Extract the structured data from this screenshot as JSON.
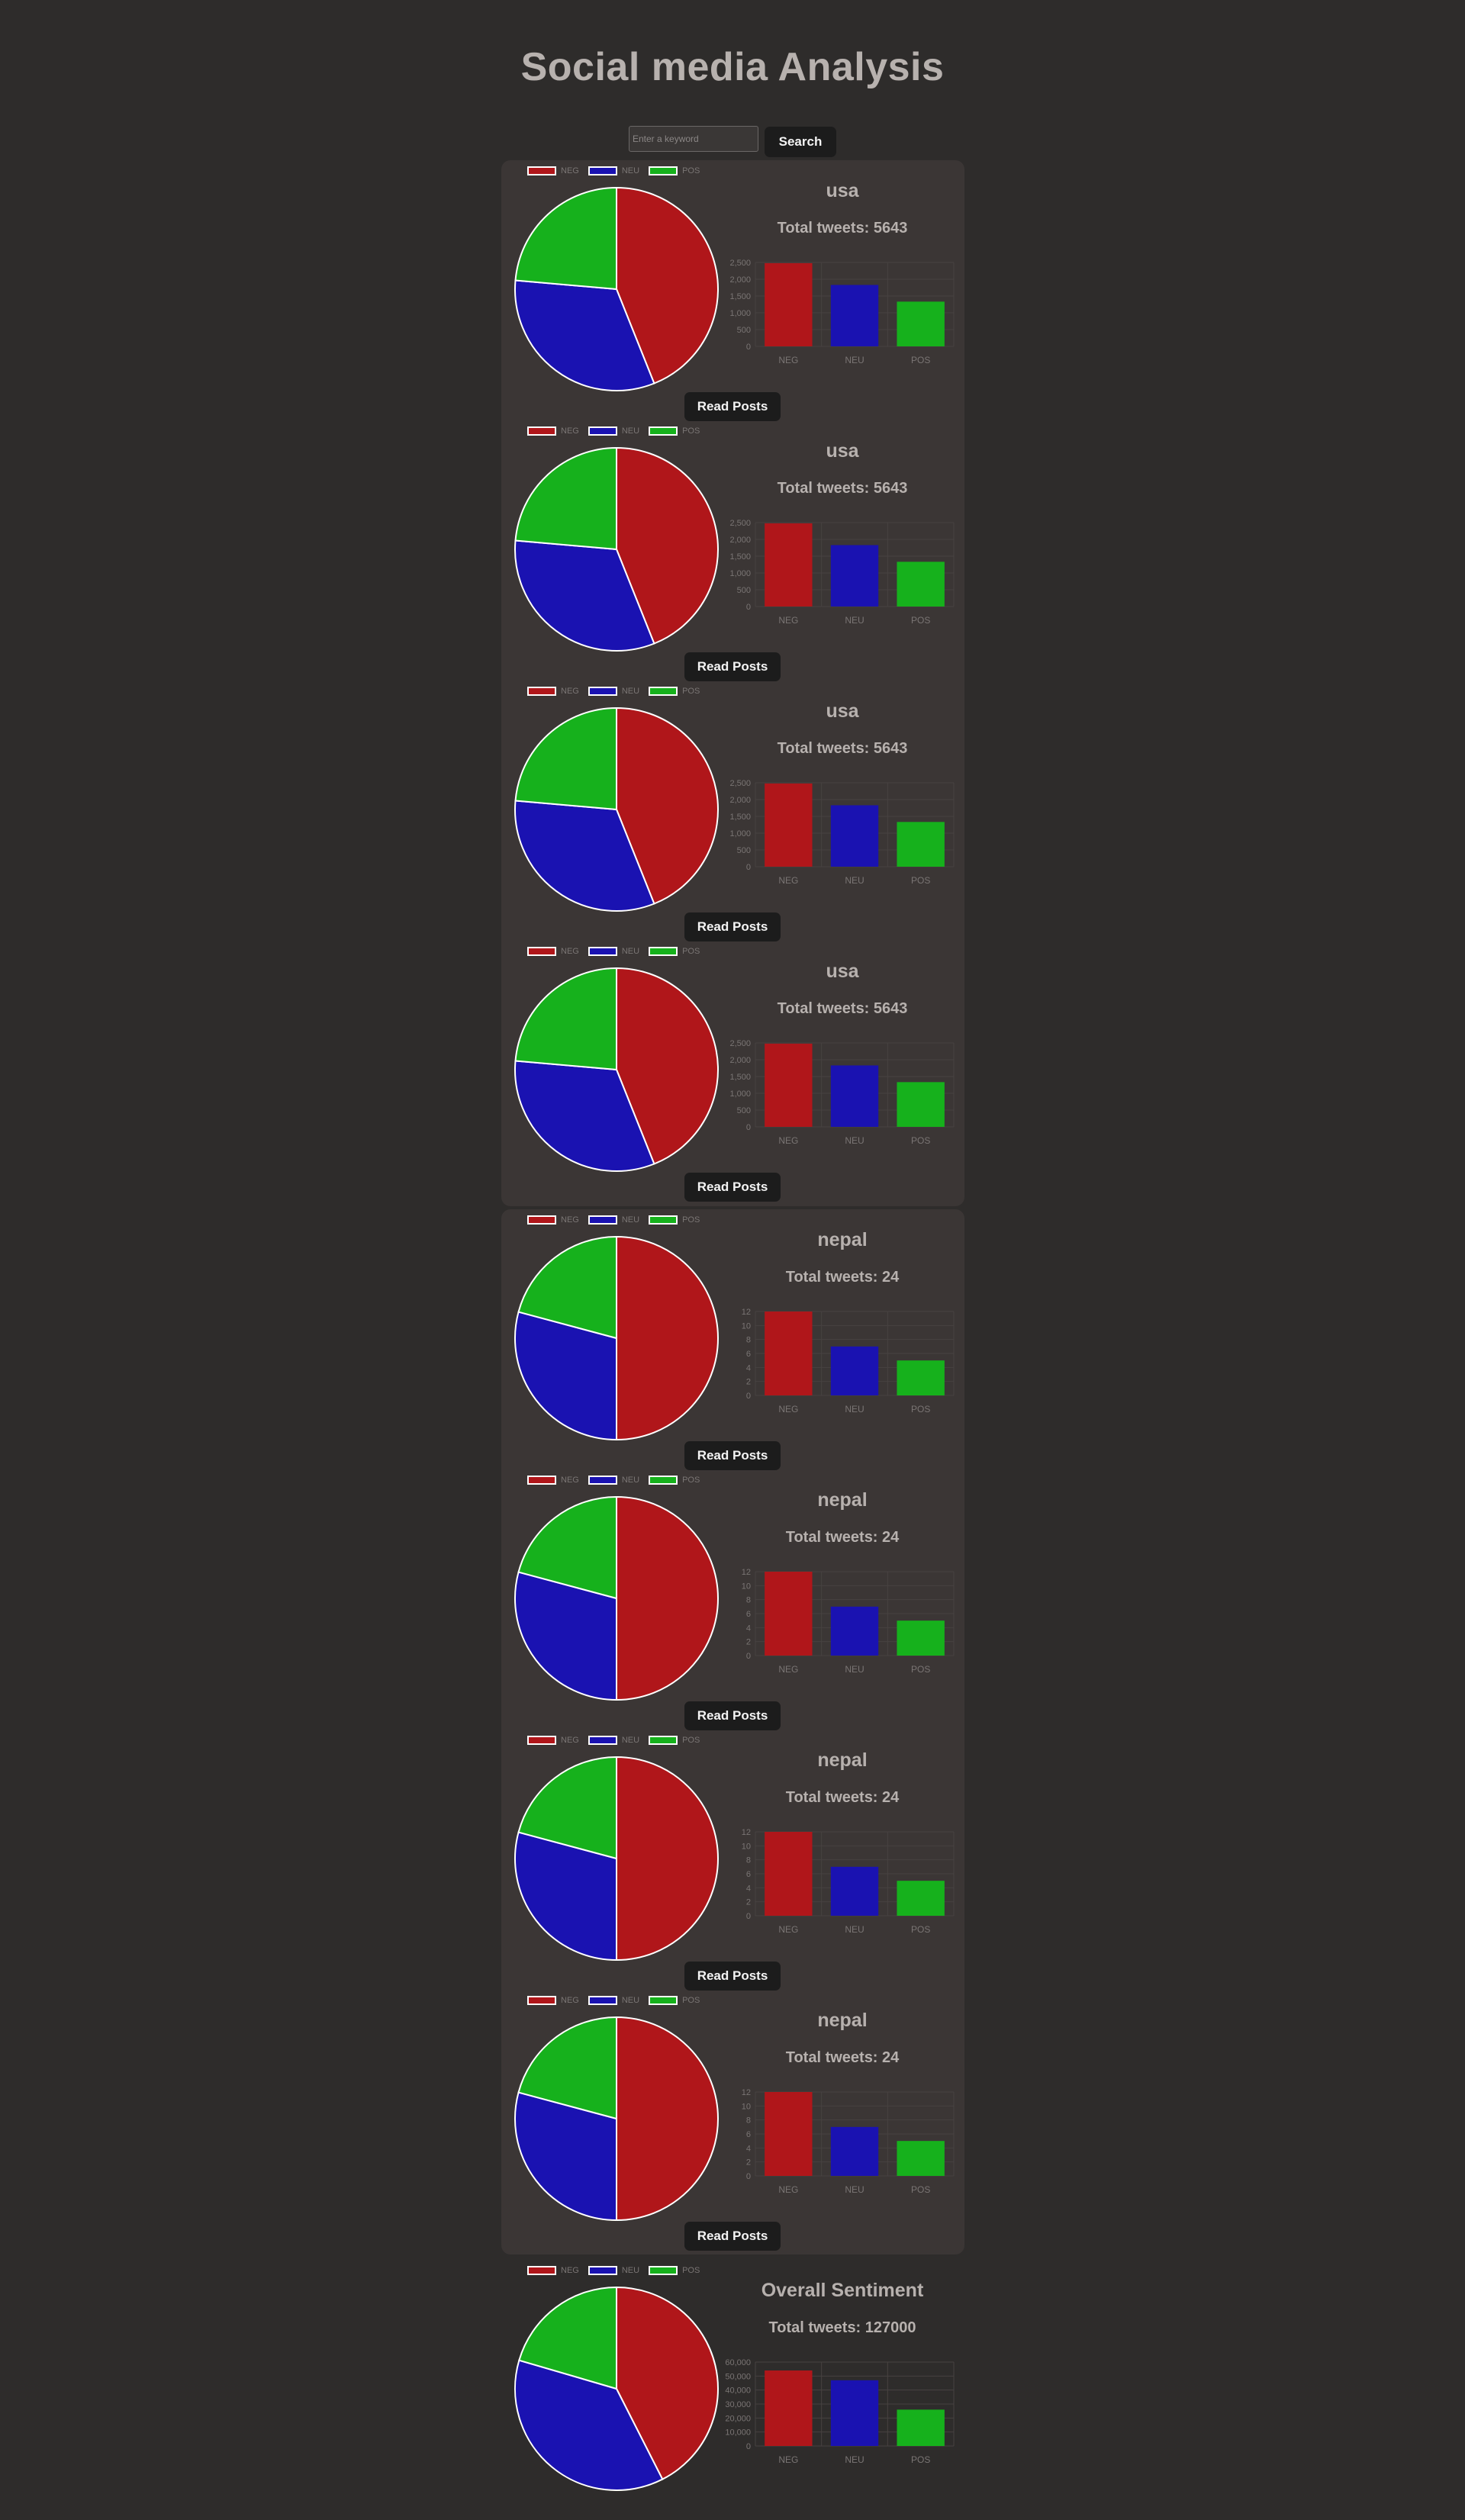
{
  "page": {
    "title": "Social media Analysis"
  },
  "search": {
    "placeholder": "Enter a keyword",
    "value": "",
    "button_label": "Search"
  },
  "colors": {
    "neg": "#b0161a",
    "neu": "#1a12b1",
    "pos": "#16b11c",
    "card_bg": "#3b3635",
    "page_bg": "#2e2c2b"
  },
  "legend_labels": [
    "NEG",
    "NEU",
    "POS"
  ],
  "cards": [
    {
      "group": 0,
      "title": "usa",
      "total_label": "Total tweets: 5643",
      "read_label": "Read Posts"
    },
    {
      "group": 0,
      "title": "usa",
      "total_label": "Total tweets: 5643",
      "read_label": "Read Posts"
    },
    {
      "group": 0,
      "title": "usa",
      "total_label": "Total tweets: 5643",
      "read_label": "Read Posts"
    },
    {
      "group": 0,
      "title": "usa",
      "total_label": "Total tweets: 5643",
      "read_label": "Read Posts"
    },
    {
      "group": 1,
      "title": "nepal",
      "total_label": "Total tweets: 24",
      "read_label": "Read Posts"
    },
    {
      "group": 1,
      "title": "nepal",
      "total_label": "Total tweets: 24",
      "read_label": "Read Posts"
    },
    {
      "group": 1,
      "title": "nepal",
      "total_label": "Total tweets: 24",
      "read_label": "Read Posts"
    },
    {
      "group": 1,
      "title": "nepal",
      "total_label": "Total tweets: 24",
      "read_label": "Read Posts"
    },
    {
      "group": 2,
      "title": "Overall Sentiment",
      "total_label": "Total tweets: 127000",
      "read_label": ""
    }
  ],
  "chart_data": [
    {
      "type": "pie",
      "title": "",
      "labels": [
        "NEG",
        "NEU",
        "POS"
      ],
      "values": [
        2480,
        1830,
        1333
      ]
    },
    {
      "type": "bar",
      "title": "",
      "categories": [
        "NEG",
        "NEU",
        "POS"
      ],
      "values": [
        2480,
        1830,
        1333
      ],
      "yticks": [
        0,
        500,
        1000,
        1500,
        2000,
        2500
      ],
      "ylim": [
        0,
        2500
      ],
      "grid": true
    },
    {
      "type": "pie",
      "title": "",
      "labels": [
        "NEG",
        "NEU",
        "POS"
      ],
      "values": [
        2480,
        1830,
        1333
      ]
    },
    {
      "type": "bar",
      "title": "",
      "categories": [
        "NEG",
        "NEU",
        "POS"
      ],
      "values": [
        2480,
        1830,
        1333
      ],
      "yticks": [
        0,
        500,
        1000,
        1500,
        2000,
        2500
      ],
      "ylim": [
        0,
        2500
      ],
      "grid": true
    },
    {
      "type": "pie",
      "title": "",
      "labels": [
        "NEG",
        "NEU",
        "POS"
      ],
      "values": [
        2480,
        1830,
        1333
      ]
    },
    {
      "type": "bar",
      "title": "",
      "categories": [
        "NEG",
        "NEU",
        "POS"
      ],
      "values": [
        2480,
        1830,
        1333
      ],
      "yticks": [
        0,
        500,
        1000,
        1500,
        2000,
        2500
      ],
      "ylim": [
        0,
        2500
      ],
      "grid": true
    },
    {
      "type": "pie",
      "title": "",
      "labels": [
        "NEG",
        "NEU",
        "POS"
      ],
      "values": [
        2480,
        1830,
        1333
      ]
    },
    {
      "type": "bar",
      "title": "",
      "categories": [
        "NEG",
        "NEU",
        "POS"
      ],
      "values": [
        2480,
        1830,
        1333
      ],
      "yticks": [
        0,
        500,
        1000,
        1500,
        2000,
        2500
      ],
      "ylim": [
        0,
        2500
      ],
      "grid": true
    },
    {
      "type": "pie",
      "title": "",
      "labels": [
        "NEG",
        "NEU",
        "POS"
      ],
      "values": [
        12,
        7,
        5
      ]
    },
    {
      "type": "bar",
      "title": "",
      "categories": [
        "NEG",
        "NEU",
        "POS"
      ],
      "values": [
        12,
        7,
        5
      ],
      "yticks": [
        0,
        2,
        4,
        6,
        8,
        10,
        12
      ],
      "ylim": [
        0,
        12
      ],
      "grid": true
    },
    {
      "type": "pie",
      "title": "",
      "labels": [
        "NEG",
        "NEU",
        "POS"
      ],
      "values": [
        12,
        7,
        5
      ]
    },
    {
      "type": "bar",
      "title": "",
      "categories": [
        "NEG",
        "NEU",
        "POS"
      ],
      "values": [
        12,
        7,
        5
      ],
      "yticks": [
        0,
        2,
        4,
        6,
        8,
        10,
        12
      ],
      "ylim": [
        0,
        12
      ],
      "grid": true
    },
    {
      "type": "pie",
      "title": "",
      "labels": [
        "NEG",
        "NEU",
        "POS"
      ],
      "values": [
        12,
        7,
        5
      ]
    },
    {
      "type": "bar",
      "title": "",
      "categories": [
        "NEG",
        "NEU",
        "POS"
      ],
      "values": [
        12,
        7,
        5
      ],
      "yticks": [
        0,
        2,
        4,
        6,
        8,
        10,
        12
      ],
      "ylim": [
        0,
        12
      ],
      "grid": true
    },
    {
      "type": "pie",
      "title": "",
      "labels": [
        "NEG",
        "NEU",
        "POS"
      ],
      "values": [
        12,
        7,
        5
      ]
    },
    {
      "type": "bar",
      "title": "",
      "categories": [
        "NEG",
        "NEU",
        "POS"
      ],
      "values": [
        12,
        7,
        5
      ],
      "yticks": [
        0,
        2,
        4,
        6,
        8,
        10,
        12
      ],
      "ylim": [
        0,
        12
      ],
      "grid": true
    },
    {
      "type": "pie",
      "title": "",
      "labels": [
        "NEG",
        "NEU",
        "POS"
      ],
      "values": [
        54000,
        47000,
        26000
      ]
    },
    {
      "type": "bar",
      "title": "",
      "categories": [
        "NEG",
        "NEU",
        "POS"
      ],
      "values": [
        54000,
        47000,
        26000
      ],
      "yticks": [
        0,
        10000,
        20000,
        30000,
        40000,
        50000,
        60000
      ],
      "ylim": [
        0,
        60000
      ],
      "grid": true
    }
  ]
}
